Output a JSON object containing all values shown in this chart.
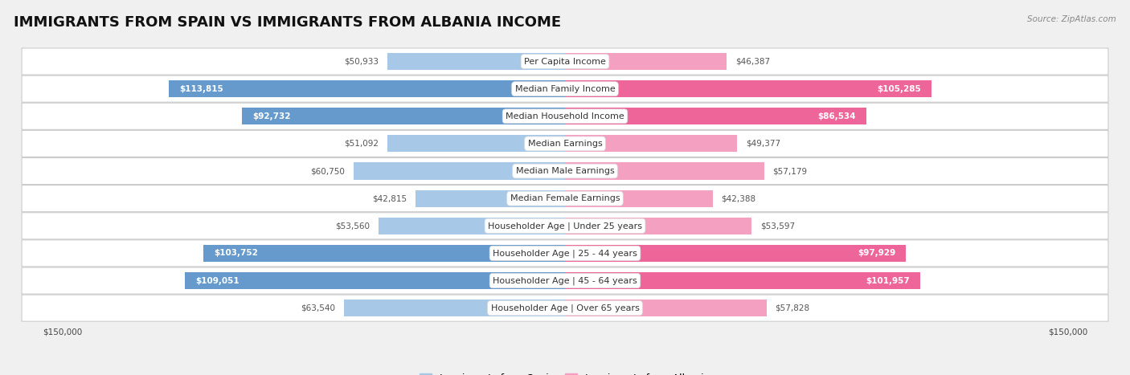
{
  "title": "IMMIGRANTS FROM SPAIN VS IMMIGRANTS FROM ALBANIA INCOME",
  "source": "Source: ZipAtlas.com",
  "categories": [
    "Per Capita Income",
    "Median Family Income",
    "Median Household Income",
    "Median Earnings",
    "Median Male Earnings",
    "Median Female Earnings",
    "Householder Age | Under 25 years",
    "Householder Age | 25 - 44 years",
    "Householder Age | 45 - 64 years",
    "Householder Age | Over 65 years"
  ],
  "spain_values": [
    50933,
    113815,
    92732,
    51092,
    60750,
    42815,
    53560,
    103752,
    109051,
    63540
  ],
  "albania_values": [
    46387,
    105285,
    86534,
    49377,
    57179,
    42388,
    53597,
    97929,
    101957,
    57828
  ],
  "spain_color_light": "#a8c8e8",
  "spain_color_dark": "#6699cc",
  "albania_color_light": "#f4a0c0",
  "albania_color_dark": "#ee6699",
  "spain_label": "Immigrants from Spain",
  "albania_label": "Immigrants from Albania",
  "max_value": 150000,
  "axis_label": "$150,000",
  "background_color": "#f0f0f0",
  "title_fontsize": 13,
  "label_fontsize": 8.0,
  "value_fontsize": 7.5,
  "inside_threshold": 80000
}
